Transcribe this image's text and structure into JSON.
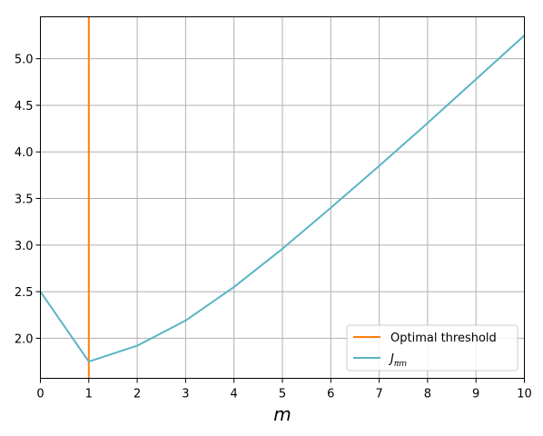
{
  "chart_data": {
    "type": "line",
    "xlabel": "m",
    "xlim": [
      0,
      10
    ],
    "ylim": [
      1.57,
      5.45
    ],
    "xticks": [
      0,
      1,
      2,
      3,
      4,
      5,
      6,
      7,
      8,
      9,
      10
    ],
    "yticks": [
      2.0,
      2.5,
      3.0,
      3.5,
      4.0,
      4.5,
      5.0
    ],
    "grid": true,
    "legend_position": "lower-right",
    "vline": {
      "name": "Optimal threshold",
      "x": 1,
      "color": "#ff7f0e"
    },
    "series": [
      {
        "name": "J",
        "name_subscript": "πm",
        "color": "#5ab4c5",
        "x": [
          0,
          1,
          2,
          3,
          4,
          5,
          6,
          7,
          8,
          9,
          10
        ],
        "y": [
          2.5,
          1.75,
          1.92,
          2.19,
          2.55,
          2.96,
          3.4,
          3.85,
          4.31,
          4.78,
          5.25
        ]
      }
    ]
  }
}
